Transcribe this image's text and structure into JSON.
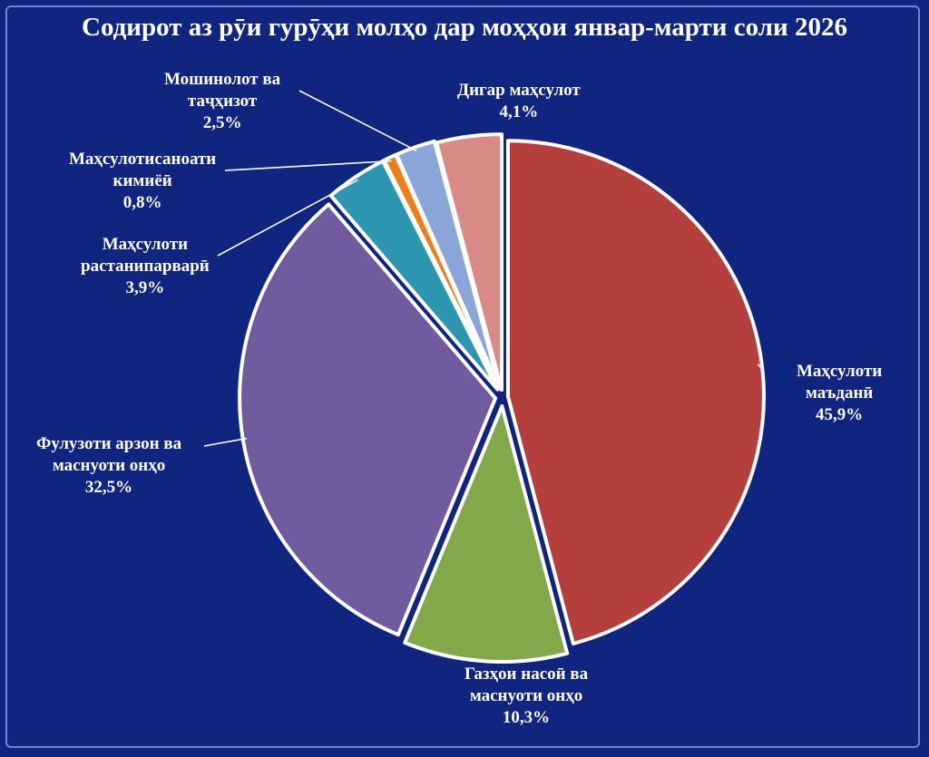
{
  "chart_data": {
    "type": "pie",
    "title": "Содирот аз рӯи гурӯҳи молҳо дар моҳҳои январ-марти соли 2026",
    "slices": [
      {
        "label_lines": [
          "Маҳсулоти",
          "маъданӣ"
        ],
        "value": 45.9,
        "value_label": "45,9%",
        "color": "#b53f3d"
      },
      {
        "label_lines": [
          "Газҳои насоӣ ва",
          "маснуоти онҳо"
        ],
        "value": 10.3,
        "value_label": "10,3%",
        "color": "#82a84a"
      },
      {
        "label_lines": [
          "Фулузоти арзон ва",
          "маснуоти онҳо"
        ],
        "value": 32.5,
        "value_label": "32,5%",
        "color": "#6f5b9e"
      },
      {
        "label_lines": [
          "Маҳсулоти",
          "растанипарварӣ"
        ],
        "value": 3.9,
        "value_label": "3,9%",
        "color": "#2d97b2"
      },
      {
        "label_lines": [
          "Маҳсулотисаноати",
          "кимиёӣ"
        ],
        "value": 0.8,
        "value_label": "0,8%",
        "color": "#ee7f17"
      },
      {
        "label_lines": [
          "Мошинолот ва",
          "таҷҳизот"
        ],
        "value": 2.5,
        "value_label": "2,5%",
        "color": "#8aa6d8"
      },
      {
        "label_lines": [
          "Дигар маҳсулот"
        ],
        "value": 4.1,
        "value_label": "4,1%",
        "color": "#d98a86"
      }
    ],
    "legend": "none"
  }
}
